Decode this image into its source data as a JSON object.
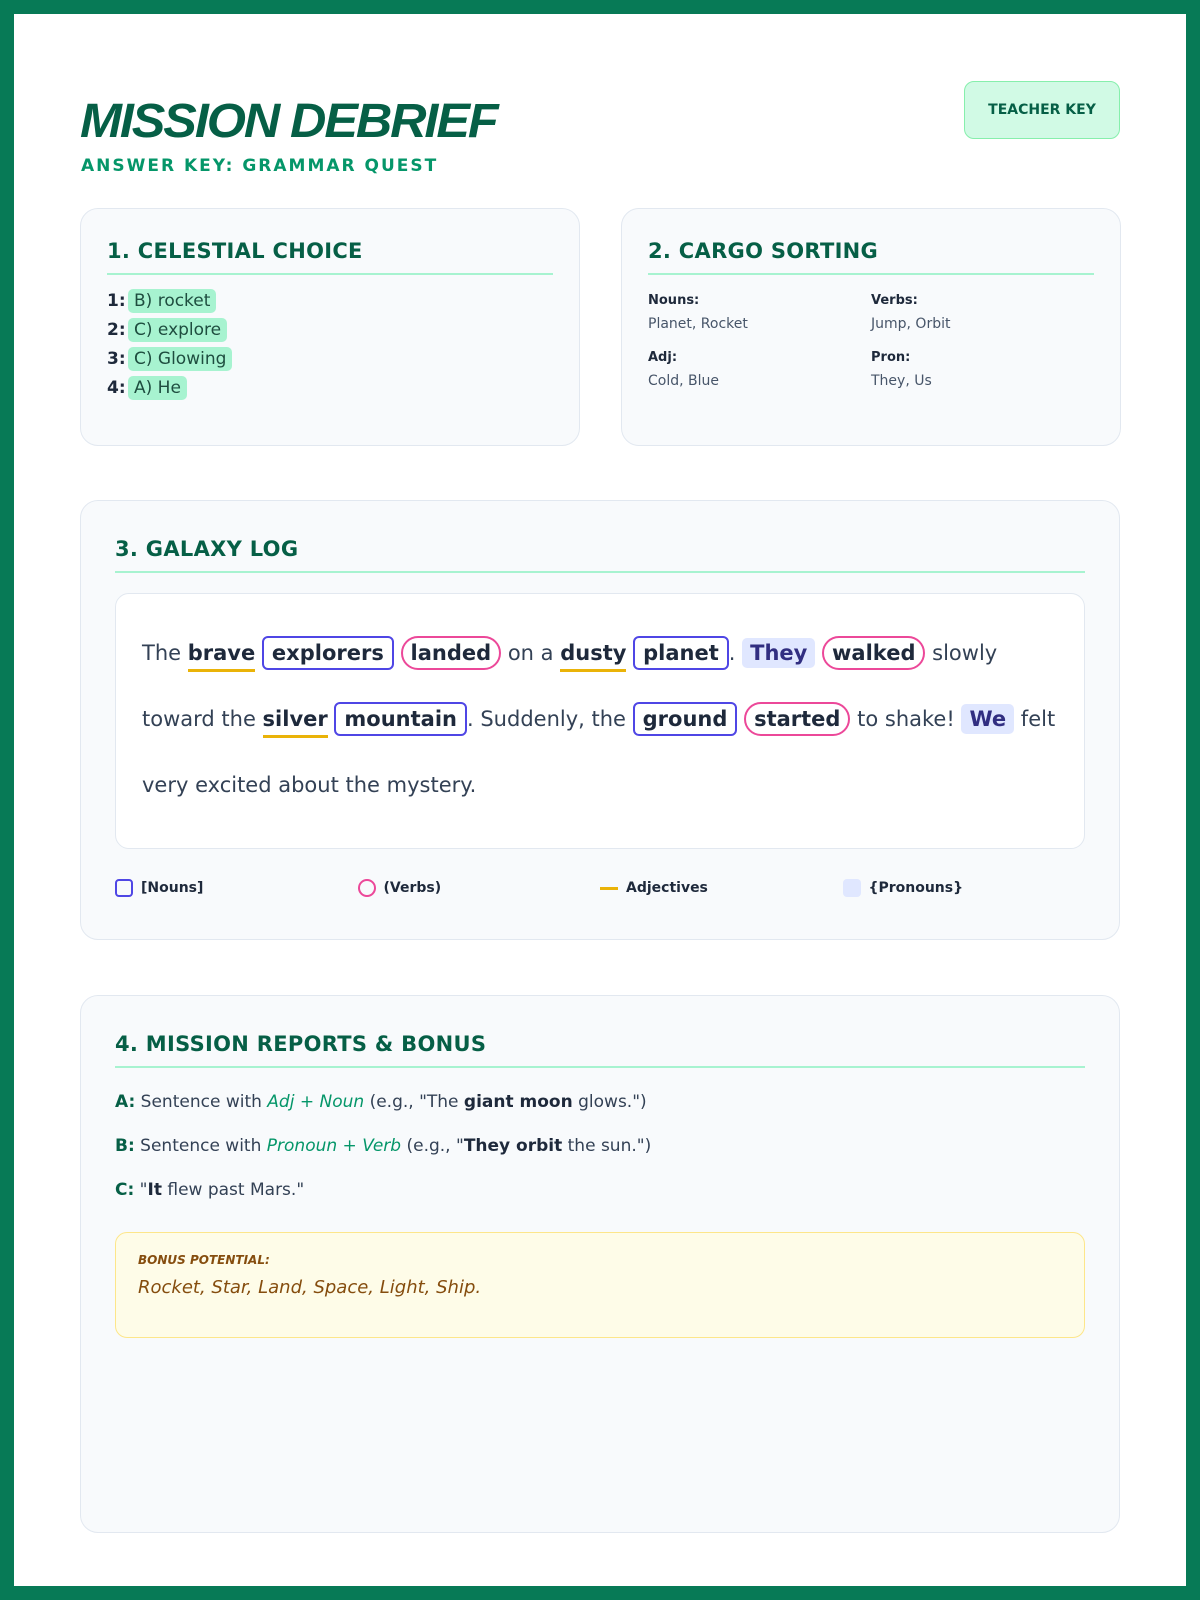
{
  "header": {
    "title": "MISSION DEBRIEF",
    "subtitle": "ANSWER KEY: GRAMMAR QUEST",
    "badge": "TEACHER KEY"
  },
  "section1": {
    "title": "1. CELESTIAL CHOICE",
    "items": [
      {
        "num": "1:",
        "answer": "B) rocket"
      },
      {
        "num": "2:",
        "answer": "C) explore"
      },
      {
        "num": "3:",
        "answer": "C) Glowing"
      },
      {
        "num": "4:",
        "answer": "A) He"
      }
    ]
  },
  "section2": {
    "title": "2. CARGO SORTING",
    "groups": [
      {
        "label": "Nouns:",
        "value": "Planet, Rocket"
      },
      {
        "label": "Verbs:",
        "value": "Jump, Orbit"
      },
      {
        "label": "Adj:",
        "value": "Cold, Blue"
      },
      {
        "label": "Pron:",
        "value": "They, Us"
      }
    ]
  },
  "section3": {
    "title": "3. GALAXY LOG",
    "passage": [
      [
        "t",
        "The "
      ],
      [
        "a",
        "brave"
      ],
      [
        "t",
        " "
      ],
      [
        "n",
        "explorers"
      ],
      [
        "t",
        " "
      ],
      [
        "v",
        "landed"
      ],
      [
        "t",
        " on a "
      ],
      [
        "a",
        "dusty"
      ],
      [
        "t",
        " "
      ],
      [
        "n",
        "planet"
      ],
      [
        "t",
        ". "
      ],
      [
        "p",
        "They"
      ],
      [
        "t",
        " "
      ],
      [
        "v",
        "walked"
      ],
      [
        "t",
        " slowly toward the "
      ],
      [
        "a",
        "silver"
      ],
      [
        "t",
        " "
      ],
      [
        "n",
        "mountain"
      ],
      [
        "t",
        ". Suddenly, the "
      ],
      [
        "n",
        "ground"
      ],
      [
        "t",
        " "
      ],
      [
        "v",
        "started"
      ],
      [
        "t",
        " to shake! "
      ],
      [
        "p",
        "We"
      ],
      [
        "t",
        " felt very excited about the mystery."
      ]
    ],
    "legend": {
      "nouns": "[Nouns]",
      "verbs": "(Verbs)",
      "adjectives": "Adjectives",
      "pronouns": "{Pronouns}"
    },
    "colors": {
      "noun": "#4f46e5",
      "verb": "#ec4899",
      "adjective": "#eab308",
      "pronoun": "#e0e7ff"
    }
  },
  "section4": {
    "title": "4. MISSION REPORTS & BONUS",
    "a": {
      "key": "A:",
      "pre": " Sentence with ",
      "hint": "Adj + Noun",
      "mid": " (e.g., \"The ",
      "bold": "giant moon",
      "post": " glows.\")"
    },
    "b": {
      "key": "B:",
      "pre": " Sentence with ",
      "hint": "Pronoun + Verb",
      "mid": " (e.g., \"",
      "bold": "They orbit",
      "post": " the sun.\")"
    },
    "c": {
      "key": "C:",
      "pre": " \"",
      "bold": "It",
      "post": " flew past Mars.\""
    },
    "bonus": {
      "label": "BONUS POTENTIAL:",
      "value": "Rocket, Star, Land, Space, Light, Ship."
    }
  }
}
